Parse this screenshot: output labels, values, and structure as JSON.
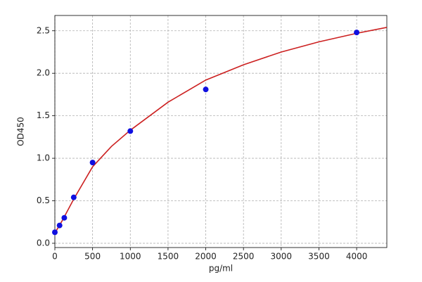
{
  "chart_data": {
    "type": "scatter",
    "x_label": "pg/ml",
    "y_label": "OD450",
    "x": [
      0,
      62.5,
      125,
      250,
      500,
      1000,
      2000,
      4000
    ],
    "values": [
      0.13,
      0.21,
      0.3,
      0.54,
      0.95,
      1.32,
      1.81,
      2.48
    ],
    "color": "#1010e0",
    "fit": {
      "color": "#cc2020",
      "x": [
        0,
        100,
        250,
        500,
        750,
        1000,
        1500,
        2000,
        2500,
        3000,
        3500,
        4000,
        4400
      ],
      "values": [
        0.12,
        0.27,
        0.52,
        0.9,
        1.14,
        1.33,
        1.66,
        1.92,
        2.1,
        2.25,
        2.37,
        2.47,
        2.54
      ]
    },
    "xlim": [
      0,
      4400
    ],
    "ylim": [
      -0.05,
      2.68
    ],
    "xticks": [
      0,
      500,
      1000,
      1500,
      2000,
      2500,
      3000,
      3500,
      4000
    ],
    "yticks": [
      {
        "value": 0,
        "label": "0.0"
      },
      0.5,
      {
        "value": 1,
        "label": "1.0"
      },
      1.5,
      {
        "value": 2,
        "label": "2.0"
      },
      2.5
    ],
    "grid": true
  }
}
